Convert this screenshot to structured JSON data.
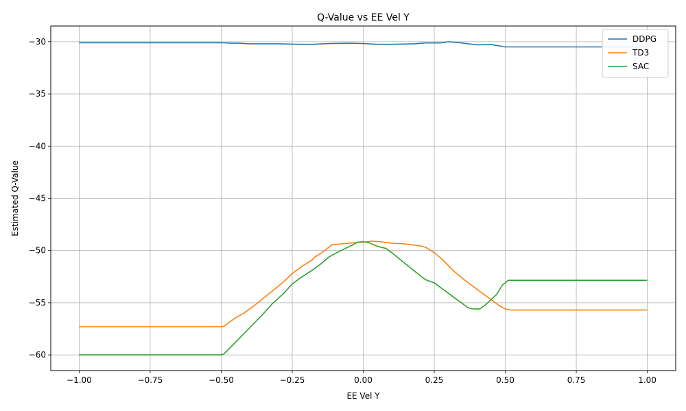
{
  "chart_data": {
    "type": "line",
    "title": "Q-Value vs EE Vel Y",
    "xlabel": "EE Vel Y",
    "ylabel": "Estimated Q-Value",
    "xlim": [
      -1.1,
      1.1
    ],
    "ylim": [
      -61.5,
      -28.5
    ],
    "xticks": [
      -1.0,
      -0.75,
      -0.5,
      -0.25,
      0.0,
      0.25,
      0.5,
      0.75,
      1.0
    ],
    "xtick_labels": [
      "−1.00",
      "−0.75",
      "−0.50",
      "−0.25",
      "0.00",
      "0.25",
      "0.50",
      "0.75",
      "1.00"
    ],
    "yticks": [
      -60,
      -55,
      -50,
      -45,
      -40,
      -35,
      -30
    ],
    "ytick_labels": [
      "−60",
      "−55",
      "−50",
      "−45",
      "−40",
      "−35",
      "−30"
    ],
    "grid": true,
    "legend_position": "top-right",
    "series": [
      {
        "name": "DDPG",
        "color": "#1f77b4",
        "points": [
          [
            -1.0,
            -30.1
          ],
          [
            -0.5,
            -30.1
          ],
          [
            -0.46,
            -30.15
          ],
          [
            -0.44,
            -30.15
          ],
          [
            -0.4,
            -30.2
          ],
          [
            -0.3,
            -30.2
          ],
          [
            -0.22,
            -30.25
          ],
          [
            -0.18,
            -30.25
          ],
          [
            -0.12,
            -30.18
          ],
          [
            -0.05,
            -30.15
          ],
          [
            0.0,
            -30.18
          ],
          [
            0.05,
            -30.25
          ],
          [
            0.1,
            -30.25
          ],
          [
            0.18,
            -30.2
          ],
          [
            0.22,
            -30.12
          ],
          [
            0.27,
            -30.12
          ],
          [
            0.3,
            -30.0
          ],
          [
            0.34,
            -30.1
          ],
          [
            0.4,
            -30.3
          ],
          [
            0.45,
            -30.28
          ],
          [
            0.5,
            -30.5
          ],
          [
            0.52,
            -30.5
          ],
          [
            1.0,
            -30.5
          ]
        ]
      },
      {
        "name": "TD3",
        "color": "#ff7f0e",
        "points": [
          [
            -1.0,
            -57.3
          ],
          [
            -0.5,
            -57.3
          ],
          [
            -0.49,
            -57.25
          ],
          [
            -0.45,
            -56.45
          ],
          [
            -0.42,
            -56.0
          ],
          [
            -0.38,
            -55.2
          ],
          [
            -0.33,
            -54.1
          ],
          [
            -0.28,
            -53.0
          ],
          [
            -0.25,
            -52.2
          ],
          [
            -0.22,
            -51.6
          ],
          [
            -0.18,
            -50.9
          ],
          [
            -0.17,
            -50.6
          ],
          [
            -0.15,
            -50.3
          ],
          [
            -0.11,
            -49.45
          ],
          [
            -0.05,
            -49.3
          ],
          [
            0.0,
            -49.2
          ],
          [
            0.03,
            -49.1
          ],
          [
            0.06,
            -49.15
          ],
          [
            0.1,
            -49.3
          ],
          [
            0.14,
            -49.35
          ],
          [
            0.2,
            -49.55
          ],
          [
            0.22,
            -49.7
          ],
          [
            0.25,
            -50.2
          ],
          [
            0.28,
            -50.9
          ],
          [
            0.32,
            -52.0
          ],
          [
            0.36,
            -52.9
          ],
          [
            0.4,
            -53.7
          ],
          [
            0.44,
            -54.5
          ],
          [
            0.48,
            -55.3
          ],
          [
            0.5,
            -55.6
          ],
          [
            0.52,
            -55.7
          ],
          [
            1.0,
            -55.7
          ]
        ]
      },
      {
        "name": "SAC",
        "color": "#2ca02c",
        "points": [
          [
            -1.0,
            -60.0
          ],
          [
            -0.5,
            -60.0
          ],
          [
            -0.49,
            -59.9
          ],
          [
            -0.45,
            -58.8
          ],
          [
            -0.4,
            -57.4
          ],
          [
            -0.35,
            -56.0
          ],
          [
            -0.32,
            -55.1
          ],
          [
            -0.28,
            -54.1
          ],
          [
            -0.27,
            -53.8
          ],
          [
            -0.25,
            -53.2
          ],
          [
            -0.22,
            -52.6
          ],
          [
            -0.18,
            -51.9
          ],
          [
            -0.15,
            -51.3
          ],
          [
            -0.12,
            -50.6
          ],
          [
            -0.1,
            -50.3
          ],
          [
            -0.07,
            -49.9
          ],
          [
            -0.04,
            -49.5
          ],
          [
            -0.02,
            -49.2
          ],
          [
            0.0,
            -49.15
          ],
          [
            0.02,
            -49.25
          ],
          [
            0.05,
            -49.6
          ],
          [
            0.08,
            -49.8
          ],
          [
            0.1,
            -50.2
          ],
          [
            0.15,
            -51.3
          ],
          [
            0.2,
            -52.4
          ],
          [
            0.22,
            -52.8
          ],
          [
            0.25,
            -53.1
          ],
          [
            0.28,
            -53.7
          ],
          [
            0.32,
            -54.5
          ],
          [
            0.35,
            -55.1
          ],
          [
            0.37,
            -55.5
          ],
          [
            0.39,
            -55.6
          ],
          [
            0.41,
            -55.6
          ],
          [
            0.43,
            -55.2
          ],
          [
            0.47,
            -54.2
          ],
          [
            0.49,
            -53.3
          ],
          [
            0.5,
            -53.1
          ],
          [
            0.51,
            -52.85
          ],
          [
            1.0,
            -52.85
          ]
        ]
      }
    ]
  }
}
